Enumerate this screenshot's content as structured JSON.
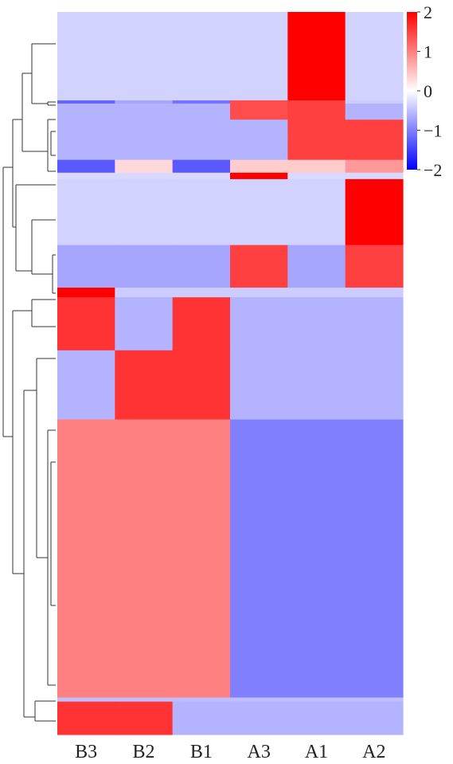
{
  "chart_data": {
    "type": "heatmap",
    "columns": [
      "B3",
      "B2",
      "B1",
      "A3",
      "A1",
      "A2"
    ],
    "color_scale": {
      "min": -2,
      "max": 2,
      "ticks": [
        "2",
        "1",
        "0",
        "−1",
        "−2"
      ],
      "low_color": "#0000ff",
      "mid_color": "#ffffff",
      "high_color": "#ff0000"
    },
    "row_clusters": [
      {
        "weight": 110,
        "values": [
          -0.35,
          -0.35,
          -0.35,
          -0.35,
          2.0,
          -0.35
        ]
      },
      {
        "weight": 4,
        "values": [
          -1.2,
          -0.7,
          -1.1,
          1.4,
          1.5,
          -0.4
        ]
      },
      {
        "weight": 20,
        "values": [
          -0.6,
          -0.6,
          -0.6,
          1.4,
          1.5,
          -0.6
        ]
      },
      {
        "weight": 22,
        "values": [
          -0.6,
          -0.6,
          -0.6,
          -0.6,
          1.5,
          1.5
        ]
      },
      {
        "weight": 28,
        "values": [
          -0.6,
          -0.6,
          -0.6,
          -0.6,
          1.5,
          1.5
        ]
      },
      {
        "weight": 16,
        "values": [
          -1.3,
          0.3,
          -1.3,
          0.4,
          0.4,
          0.8
        ]
      },
      {
        "weight": 8,
        "values": [
          -0.3,
          -0.3,
          -0.3,
          2.0,
          -0.3,
          -0.3
        ]
      },
      {
        "weight": 82,
        "values": [
          -0.35,
          -0.35,
          -0.35,
          -0.35,
          -0.35,
          2.0
        ]
      },
      {
        "weight": 53,
        "values": [
          -0.7,
          -0.7,
          -0.7,
          1.5,
          -0.7,
          1.5
        ]
      },
      {
        "weight": 12,
        "values": [
          2.0,
          -0.4,
          -0.4,
          -0.4,
          -0.4,
          -0.4
        ]
      },
      {
        "weight": 66,
        "values": [
          1.6,
          -0.6,
          1.6,
          -0.6,
          -0.6,
          -0.6
        ]
      },
      {
        "weight": 86,
        "values": [
          -0.6,
          1.6,
          1.6,
          -0.6,
          -0.6,
          -0.6
        ]
      },
      {
        "weight": 346,
        "values": [
          1.0,
          1.0,
          1.0,
          -1.0,
          -1.0,
          -1.0
        ]
      },
      {
        "weight": 5,
        "values": [
          -0.5,
          -0.5,
          -0.5,
          -0.5,
          -0.5,
          -0.5
        ]
      },
      {
        "weight": 41,
        "values": [
          1.6,
          1.6,
          -0.6,
          -0.6,
          -0.6,
          -0.6
        ]
      }
    ]
  }
}
